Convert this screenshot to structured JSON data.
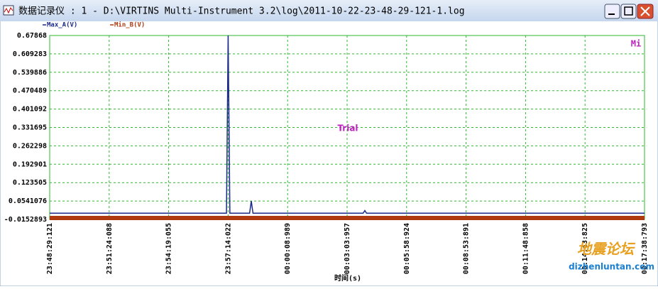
{
  "window": {
    "title": "数据记录仪 : 1 - D:\\VIRTINS Multi-Instrument 3.2\\log\\2011-10-22-23-48-29-121-1.log"
  },
  "chart_data": {
    "type": "line",
    "x_label": "时间(s)",
    "annotations": [
      "Trial",
      "Mi"
    ],
    "watermark": [
      "地震论坛",
      "dizhenluntan.com"
    ],
    "xlim": [
      0,
      1749.672
    ],
    "xticks": [
      {
        "value": 0,
        "label": "23:48:29:121"
      },
      {
        "value": 174.967,
        "label": "23:51:24:088"
      },
      {
        "value": 349.934,
        "label": "23:54:19:055"
      },
      {
        "value": 524.901,
        "label": "23:57:14:022"
      },
      {
        "value": 699.868,
        "label": "00:00:08:989"
      },
      {
        "value": 874.836,
        "label": "00:03:03:957"
      },
      {
        "value": 1049.803,
        "label": "00:05:58:924"
      },
      {
        "value": 1224.77,
        "label": "00:08:53:891"
      },
      {
        "value": 1399.737,
        "label": "00:11:48:858"
      },
      {
        "value": 1574.704,
        "label": "00:14:43:825"
      },
      {
        "value": 1749.672,
        "label": "00:17:38:793"
      }
    ],
    "ylim": [
      -0.0152893,
      0.67868
    ],
    "yticks": [
      0.67868,
      0.609283,
      0.539886,
      0.470489,
      0.401092,
      0.331695,
      0.262298,
      0.192901,
      0.123505,
      0.0541076,
      -0.0152893
    ],
    "grid": true,
    "grid_color": "#2db82d",
    "series": [
      {
        "name": "Max_A(V)",
        "color": "#1a2a8a",
        "x": [
          0,
          520,
          524.9,
          530,
          588,
          593,
          598,
          922,
          927,
          932,
          1749.672
        ],
        "values": [
          0.008,
          0.008,
          0.67868,
          0.008,
          0.008,
          0.054,
          0.008,
          0.008,
          0.018,
          0.008,
          0.008
        ]
      },
      {
        "name": "Min_B(V)",
        "color": "#b03a10",
        "x": [
          0,
          1749.672
        ],
        "values": [
          -0.01,
          -0.01
        ]
      }
    ]
  }
}
